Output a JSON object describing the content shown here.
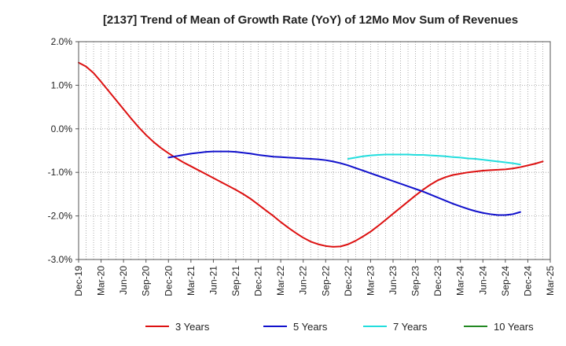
{
  "chart_data": {
    "type": "line",
    "title": "[2137]  Trend of Mean of Growth Rate (YoY) of 12Mo Mov Sum of Revenues",
    "xlabel": "",
    "ylabel": "",
    "ylim": [
      -3.0,
      2.0
    ],
    "y_ticks": [
      2.0,
      1.0,
      0.0,
      -1.0,
      -2.0,
      -3.0
    ],
    "y_tick_labels": [
      "2.0%",
      "1.0%",
      "0.0%",
      "-1.0%",
      "-2.0%",
      "-3.0%"
    ],
    "x_ticks": [
      "Dec-19",
      "Mar-20",
      "Jun-20",
      "Sep-20",
      "Dec-20",
      "Mar-21",
      "Jun-21",
      "Sep-21",
      "Dec-21",
      "Mar-22",
      "Jun-22",
      "Sep-22",
      "Dec-22",
      "Mar-23",
      "Jun-23",
      "Sep-23",
      "Dec-23",
      "Mar-24",
      "Jun-24",
      "Sep-24",
      "Dec-24",
      "Mar-25"
    ],
    "x_months_per_tick": 3,
    "grid": {
      "vertical": "dotted-monthly",
      "horizontal": "dotted"
    },
    "legend_position": "bottom",
    "series": [
      {
        "name": "3 Years",
        "color": "#dd1111",
        "start": "Dec-19",
        "values": [
          1.52,
          1.43,
          1.28,
          1.08,
          0.87,
          0.66,
          0.45,
          0.24,
          0.04,
          -0.14,
          -0.3,
          -0.44,
          -0.56,
          -0.67,
          -0.77,
          -0.86,
          -0.95,
          -1.04,
          -1.13,
          -1.22,
          -1.31,
          -1.4,
          -1.5,
          -1.61,
          -1.74,
          -1.87,
          -2.0,
          -2.14,
          -2.27,
          -2.39,
          -2.5,
          -2.59,
          -2.65,
          -2.69,
          -2.71,
          -2.7,
          -2.65,
          -2.57,
          -2.47,
          -2.36,
          -2.23,
          -2.09,
          -1.95,
          -1.81,
          -1.67,
          -1.53,
          -1.4,
          -1.28,
          -1.18,
          -1.11,
          -1.06,
          -1.03,
          -1.0,
          -0.98,
          -0.96,
          -0.95,
          -0.94,
          -0.93,
          -0.91,
          -0.88,
          -0.84,
          -0.8,
          -0.75
        ]
      },
      {
        "name": "5 Years",
        "color": "#1111cc",
        "start": "Dec-20",
        "values": [
          -0.66,
          -0.63,
          -0.6,
          -0.57,
          -0.55,
          -0.53,
          -0.52,
          -0.52,
          -0.52,
          -0.53,
          -0.55,
          -0.57,
          -0.6,
          -0.62,
          -0.64,
          -0.65,
          -0.66,
          -0.67,
          -0.68,
          -0.69,
          -0.7,
          -0.72,
          -0.75,
          -0.79,
          -0.84,
          -0.9,
          -0.96,
          -1.02,
          -1.08,
          -1.14,
          -1.2,
          -1.26,
          -1.32,
          -1.38,
          -1.44,
          -1.51,
          -1.58,
          -1.65,
          -1.72,
          -1.78,
          -1.84,
          -1.89,
          -1.93,
          -1.96,
          -1.98,
          -1.98,
          -1.96,
          -1.91
        ]
      },
      {
        "name": "7 Years",
        "color": "#22dddd",
        "start": "Dec-22",
        "values": [
          -0.69,
          -0.66,
          -0.63,
          -0.61,
          -0.6,
          -0.59,
          -0.59,
          -0.59,
          -0.59,
          -0.6,
          -0.6,
          -0.61,
          -0.62,
          -0.63,
          -0.65,
          -0.66,
          -0.68,
          -0.69,
          -0.71,
          -0.73,
          -0.75,
          -0.77,
          -0.79,
          -0.82
        ]
      },
      {
        "name": "10 Years",
        "color": "#228822",
        "start": "Dec-19",
        "values": []
      }
    ]
  }
}
